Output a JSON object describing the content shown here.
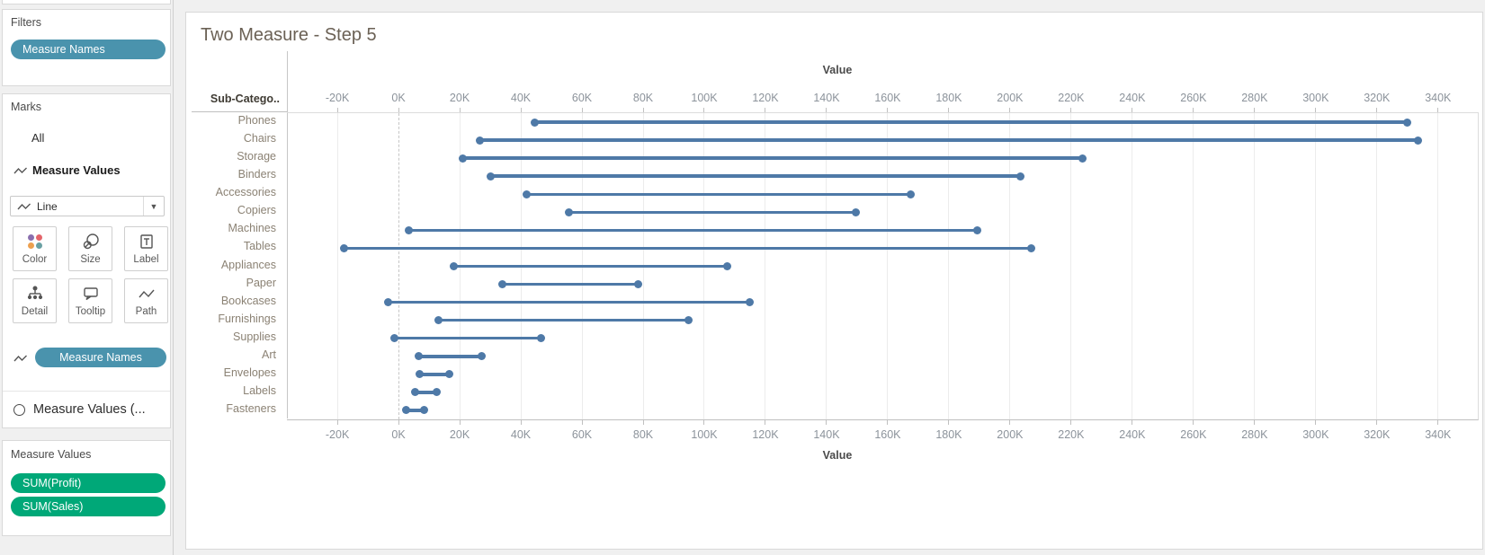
{
  "sidebar": {
    "filters": {
      "title": "Filters",
      "pill": "Measure Names"
    },
    "marks": {
      "title": "Marks",
      "layer_all": "All",
      "layer_selected": "Measure Values",
      "mark_type": "Line",
      "buttons": [
        "Color",
        "Size",
        "Label",
        "Detail",
        "Tooltip",
        "Path"
      ],
      "encoding_pill": "Measure Names",
      "collapsed_layer": "Measure Values (..."
    },
    "measure_values": {
      "title": "Measure Values",
      "pills": [
        "SUM(Profit)",
        "SUM(Sales)"
      ]
    },
    "pill_blue": "#4a93ad",
    "pill_green": "#00a878"
  },
  "chart": {
    "title": "Two Measure - Step 5",
    "row_header": "Sub-Catego..",
    "axis_title_top": "Value",
    "axis_title_bottom": "Value"
  },
  "chart_data": {
    "type": "dumbbell",
    "orientation": "horizontal",
    "title": "Two Measure - Step 5",
    "xlabel": "Value",
    "categories": [
      "Phones",
      "Chairs",
      "Storage",
      "Binders",
      "Accessories",
      "Copiers",
      "Machines",
      "Tables",
      "Appliances",
      "Paper",
      "Bookcases",
      "Furnishings",
      "Supplies",
      "Art",
      "Envelopes",
      "Labels",
      "Fasteners"
    ],
    "series": [
      {
        "name": "SUM(Profit)",
        "values": [
          44500,
          26600,
          21000,
          30200,
          41900,
          55600,
          3400,
          -17700,
          18100,
          34000,
          -3500,
          13100,
          -1200,
          6500,
          7000,
          5500,
          2600
        ]
      },
      {
        "name": "SUM(Sales)",
        "values": [
          330000,
          333500,
          223800,
          203400,
          167400,
          149500,
          189200,
          207000,
          107500,
          78500,
          114900,
          95000,
          46700,
          27100,
          16500,
          12500,
          8500
        ]
      }
    ],
    "x_ticks": [
      "-20K",
      "0K",
      "20K",
      "40K",
      "60K",
      "80K",
      "100K",
      "120K",
      "140K",
      "160K",
      "180K",
      "200K",
      "220K",
      "240K",
      "260K",
      "280K",
      "300K",
      "320K",
      "340K"
    ],
    "x_tick_values": [
      -20000,
      0,
      20000,
      40000,
      60000,
      80000,
      100000,
      120000,
      140000,
      160000,
      180000,
      200000,
      220000,
      240000,
      260000,
      280000,
      300000,
      320000,
      340000
    ],
    "xlim": [
      -36500,
      353000
    ],
    "gridlines": true,
    "zero_line": "dashed",
    "legend_position": "none",
    "mark_color": "#4e79a7"
  },
  "colors": {
    "title_text": "#6b6155",
    "row_label": "#8b8274",
    "tick_label": "#8c939b",
    "mark_blue": "#4e79a7",
    "pill_blue": "#4a93ad",
    "pill_green": "#00a878"
  }
}
